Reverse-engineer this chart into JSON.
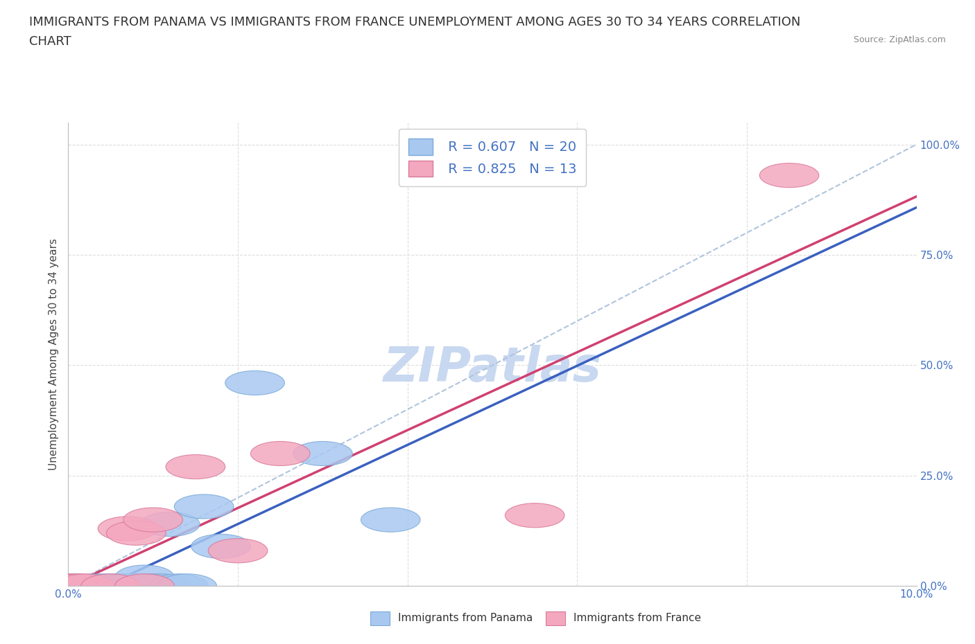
{
  "title_line1": "IMMIGRANTS FROM PANAMA VS IMMIGRANTS FROM FRANCE UNEMPLOYMENT AMONG AGES 30 TO 34 YEARS CORRELATION",
  "title_line2": "CHART",
  "source_text": "Source: ZipAtlas.com",
  "ylabel": "Unemployment Among Ages 30 to 34 years",
  "xlim": [
    0.0,
    0.1
  ],
  "ylim": [
    0.0,
    1.05
  ],
  "x_ticks": [
    0.0,
    0.02,
    0.04,
    0.06,
    0.08,
    0.1
  ],
  "y_ticks": [
    0.0,
    0.25,
    0.5,
    0.75,
    1.0
  ],
  "y_tick_labels": [
    "0.0%",
    "25.0%",
    "50.0%",
    "75.0%",
    "100.0%"
  ],
  "panama_color": "#A8C8F0",
  "panama_edge_color": "#7AAAD8",
  "france_color": "#F4A8C0",
  "france_edge_color": "#D87898",
  "trendline_panama_color": "#3A60C0",
  "trendline_france_color": "#D04070",
  "trendline_dashed_color": "#B0C4DE",
  "legend_R_panama": "0.607",
  "legend_N_panama": "20",
  "legend_R_france": "0.825",
  "legend_N_france": "13",
  "watermark_text": "ZIPatlas",
  "watermark_color": "#C8D8F0",
  "panama_x": [
    0.0,
    0.001,
    0.003,
    0.004,
    0.005,
    0.006,
    0.007,
    0.008,
    0.009,
    0.009,
    0.01,
    0.011,
    0.012,
    0.013,
    0.014,
    0.016,
    0.018,
    0.022,
    0.03,
    0.038
  ],
  "panama_y": [
    0.0,
    0.0,
    0.0,
    0.0,
    0.0,
    0.0,
    0.0,
    0.0,
    0.0,
    0.02,
    0.0,
    0.0,
    0.14,
    0.0,
    0.0,
    0.18,
    0.09,
    0.46,
    0.3,
    0.15
  ],
  "france_x": [
    0.0,
    0.001,
    0.002,
    0.005,
    0.007,
    0.008,
    0.009,
    0.01,
    0.015,
    0.02,
    0.025,
    0.055,
    0.085
  ],
  "france_y": [
    0.0,
    0.0,
    0.0,
    0.0,
    0.13,
    0.12,
    0.0,
    0.15,
    0.27,
    0.08,
    0.3,
    0.16,
    0.93
  ],
  "background_color": "#FFFFFF",
  "grid_color": "#DDDDDD",
  "title_fontsize": 13,
  "axis_label_fontsize": 11,
  "tick_fontsize": 11,
  "legend_fontsize": 14
}
